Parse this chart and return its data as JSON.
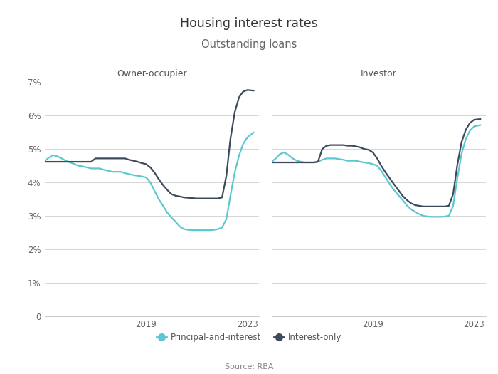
{
  "title": "Housing interest rates",
  "subtitle": "Outstanding loans",
  "source": "Source: RBA",
  "left_panel_title": "Owner-occupier",
  "right_panel_title": "Investor",
  "ylim": [
    0,
    7
  ],
  "yticks": [
    0,
    1,
    2,
    3,
    4,
    5,
    6,
    7
  ],
  "ytick_labels": [
    "0",
    "1%",
    "2%",
    "3%",
    "4%",
    "5%",
    "6%",
    "7%"
  ],
  "color_pi": "#5BC8D0",
  "color_io": "#3D4A5C",
  "legend_pi": "Principal-and-interest",
  "legend_io": "Interest-only",
  "background_color": "#ffffff",
  "oo_pi_x": [
    2015.0,
    2015.17,
    2015.33,
    2015.5,
    2015.67,
    2015.83,
    2016.0,
    2016.17,
    2016.33,
    2016.5,
    2016.67,
    2016.83,
    2017.0,
    2017.17,
    2017.33,
    2017.5,
    2017.67,
    2017.83,
    2018.0,
    2018.17,
    2018.33,
    2018.5,
    2018.67,
    2018.83,
    2019.0,
    2019.17,
    2019.33,
    2019.5,
    2019.67,
    2019.83,
    2020.0,
    2020.17,
    2020.33,
    2020.5,
    2020.67,
    2020.83,
    2021.0,
    2021.17,
    2021.33,
    2021.5,
    2021.67,
    2021.83,
    2022.0,
    2022.17,
    2022.33,
    2022.5,
    2022.67,
    2022.83,
    2023.0,
    2023.25
  ],
  "oo_pi_y": [
    4.65,
    4.75,
    4.82,
    4.78,
    4.72,
    4.65,
    4.6,
    4.55,
    4.5,
    4.48,
    4.45,
    4.42,
    4.42,
    4.42,
    4.38,
    4.35,
    4.32,
    4.32,
    4.32,
    4.28,
    4.25,
    4.22,
    4.2,
    4.18,
    4.15,
    4.0,
    3.75,
    3.5,
    3.3,
    3.1,
    2.95,
    2.82,
    2.68,
    2.6,
    2.58,
    2.57,
    2.57,
    2.57,
    2.57,
    2.57,
    2.58,
    2.6,
    2.65,
    2.9,
    3.6,
    4.3,
    4.8,
    5.15,
    5.35,
    5.5
  ],
  "oo_io_x": [
    2015.0,
    2015.17,
    2015.33,
    2015.5,
    2015.67,
    2015.83,
    2016.0,
    2016.17,
    2016.33,
    2016.5,
    2016.67,
    2016.83,
    2017.0,
    2017.17,
    2017.33,
    2017.5,
    2017.67,
    2017.83,
    2018.0,
    2018.17,
    2018.33,
    2018.5,
    2018.67,
    2018.83,
    2019.0,
    2019.17,
    2019.33,
    2019.5,
    2019.67,
    2019.83,
    2020.0,
    2020.17,
    2020.33,
    2020.5,
    2020.67,
    2020.83,
    2021.0,
    2021.17,
    2021.33,
    2021.5,
    2021.67,
    2021.83,
    2022.0,
    2022.17,
    2022.33,
    2022.5,
    2022.67,
    2022.83,
    2023.0,
    2023.25
  ],
  "oo_io_y": [
    4.62,
    4.62,
    4.62,
    4.62,
    4.62,
    4.62,
    4.62,
    4.62,
    4.62,
    4.62,
    4.62,
    4.62,
    4.72,
    4.72,
    4.72,
    4.72,
    4.72,
    4.72,
    4.72,
    4.72,
    4.68,
    4.65,
    4.62,
    4.58,
    4.55,
    4.45,
    4.3,
    4.1,
    3.92,
    3.78,
    3.65,
    3.6,
    3.58,
    3.55,
    3.54,
    3.53,
    3.52,
    3.52,
    3.52,
    3.52,
    3.52,
    3.52,
    3.55,
    4.2,
    5.3,
    6.1,
    6.55,
    6.72,
    6.77,
    6.75
  ],
  "inv_pi_x": [
    2015.0,
    2015.17,
    2015.33,
    2015.5,
    2015.67,
    2015.83,
    2016.0,
    2016.17,
    2016.33,
    2016.5,
    2016.67,
    2016.83,
    2017.0,
    2017.17,
    2017.33,
    2017.5,
    2017.67,
    2017.83,
    2018.0,
    2018.17,
    2018.33,
    2018.5,
    2018.67,
    2018.83,
    2019.0,
    2019.17,
    2019.33,
    2019.5,
    2019.67,
    2019.83,
    2020.0,
    2020.17,
    2020.33,
    2020.5,
    2020.67,
    2020.83,
    2021.0,
    2021.17,
    2021.33,
    2021.5,
    2021.67,
    2021.83,
    2022.0,
    2022.17,
    2022.33,
    2022.5,
    2022.67,
    2022.83,
    2023.0,
    2023.25
  ],
  "inv_pi_y": [
    4.62,
    4.72,
    4.85,
    4.9,
    4.82,
    4.72,
    4.65,
    4.62,
    4.6,
    4.6,
    4.6,
    4.62,
    4.68,
    4.72,
    4.72,
    4.72,
    4.7,
    4.68,
    4.65,
    4.65,
    4.65,
    4.62,
    4.6,
    4.58,
    4.55,
    4.5,
    4.35,
    4.15,
    3.95,
    3.78,
    3.62,
    3.48,
    3.32,
    3.2,
    3.12,
    3.05,
    3.0,
    2.98,
    2.97,
    2.97,
    2.97,
    2.98,
    3.0,
    3.3,
    4.1,
    4.85,
    5.3,
    5.55,
    5.68,
    5.72
  ],
  "inv_io_x": [
    2015.0,
    2015.17,
    2015.33,
    2015.5,
    2015.67,
    2015.83,
    2016.0,
    2016.17,
    2016.33,
    2016.5,
    2016.67,
    2016.83,
    2017.0,
    2017.17,
    2017.33,
    2017.5,
    2017.67,
    2017.83,
    2018.0,
    2018.17,
    2018.33,
    2018.5,
    2018.67,
    2018.83,
    2019.0,
    2019.17,
    2019.33,
    2019.5,
    2019.67,
    2019.83,
    2020.0,
    2020.17,
    2020.33,
    2020.5,
    2020.67,
    2020.83,
    2021.0,
    2021.17,
    2021.33,
    2021.5,
    2021.67,
    2021.83,
    2022.0,
    2022.17,
    2022.33,
    2022.5,
    2022.67,
    2022.83,
    2023.0,
    2023.25
  ],
  "inv_io_y": [
    4.6,
    4.6,
    4.6,
    4.6,
    4.6,
    4.6,
    4.6,
    4.6,
    4.6,
    4.6,
    4.6,
    4.62,
    5.0,
    5.1,
    5.12,
    5.12,
    5.12,
    5.12,
    5.1,
    5.1,
    5.08,
    5.05,
    5.0,
    4.98,
    4.9,
    4.72,
    4.5,
    4.3,
    4.12,
    3.95,
    3.78,
    3.6,
    3.48,
    3.38,
    3.32,
    3.3,
    3.28,
    3.28,
    3.28,
    3.28,
    3.28,
    3.28,
    3.3,
    3.65,
    4.5,
    5.2,
    5.58,
    5.78,
    5.88,
    5.9
  ]
}
